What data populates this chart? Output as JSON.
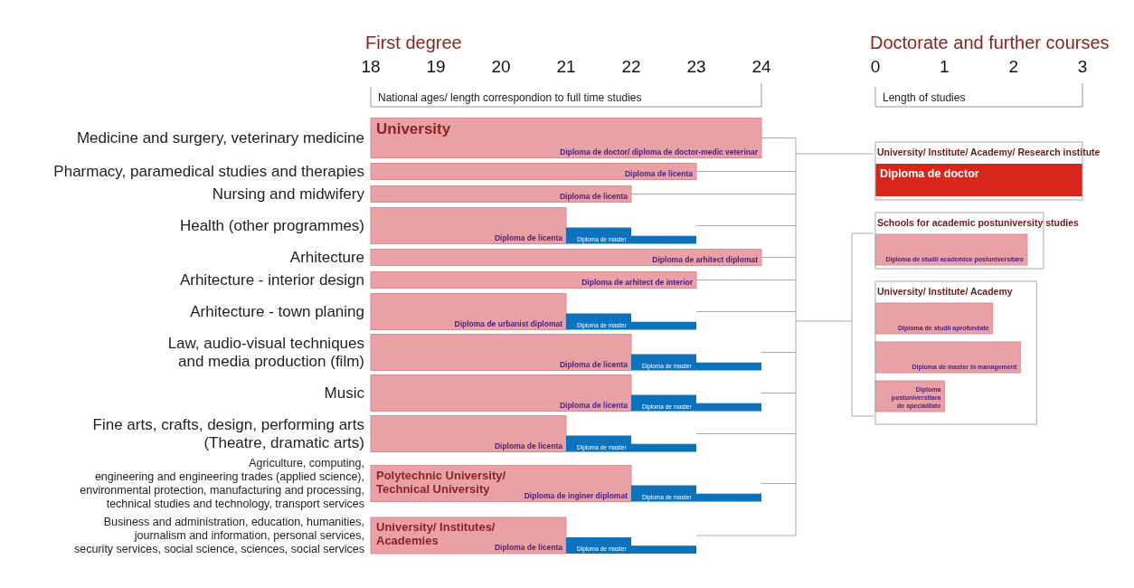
{
  "chart_data": [
    {
      "type": "bar",
      "orientation": "horizontal",
      "title": "First degree",
      "xlim": [
        18,
        24
      ],
      "xticks": [
        18,
        19,
        20,
        21,
        22,
        23,
        24
      ],
      "categories": [
        "Medicine and surgery, veterinary medicine",
        "Pharmacy, paramedical studies and therapies",
        "Nursing and midwifery",
        "Health (other programmes)",
        "Arhitecture",
        "Arhitecture - interior design",
        "Arhitecture - town planing",
        "Law, audio-visual techniques\nand media production (film)",
        "Music",
        "Fine arts, crafts, design, performing arts\n(Theatre, dramatic arts)",
        "Agriculture, computing,\nengineering and engineering trades (applied science),\nenvironmental protection, manufacturing and processing,\ntechnical studies and technology, transport services",
        "Business and administration, education, humanities,\njournalism and information, personal services,\nsecurity services, social science, sciences, social services"
      ],
      "series": [
        {
          "color": "#e9a1a6",
          "base": [
            18,
            18,
            18,
            18,
            18,
            18,
            18,
            18,
            18,
            18,
            18,
            18
          ],
          "values": [
            6,
            5,
            4,
            3,
            6,
            5,
            3,
            4,
            4,
            3,
            4,
            3
          ],
          "value_labels": [
            "Diploma de doctor/ diploma de doctor-medic veterinar",
            "Diploma de licenta",
            "Diploma de licenta",
            "Diploma de licenta",
            "Diploma de arhitect diplomat",
            "Diploma de arhitect de interior",
            "Diploma de urbanist diplomat",
            "Diploma de licenta",
            "Diploma de licenta",
            "Diploma de licenta",
            "Diploma de inginer diplomat",
            "Diploma de licenta"
          ]
        },
        {
          "color": "#0b72bb",
          "base": [
            null,
            null,
            null,
            21,
            null,
            null,
            21,
            22,
            22,
            21,
            22,
            21
          ],
          "values": [
            null,
            null,
            null,
            1,
            null,
            null,
            1,
            1,
            1,
            1,
            1,
            1
          ],
          "value_labels": [
            null,
            null,
            null,
            "Diploma de master",
            null,
            null,
            "Diploma de master",
            "Diploma de master",
            "Diploma de master",
            "Diploma de master",
            "Diploma de master",
            "Diploma de master"
          ]
        },
        {
          "color": "#0b72bb",
          "base": [
            null,
            null,
            null,
            22,
            null,
            null,
            22,
            23,
            23,
            22,
            23,
            22
          ],
          "values": [
            null,
            null,
            null,
            1,
            null,
            null,
            1,
            1,
            1,
            1,
            1,
            1
          ]
        }
      ],
      "annotations": [
        "National ages/ length correspondion to full time studies",
        "University",
        "Polytechnic University/\nTechnical University",
        "University/ Institutes/\nAcademies"
      ]
    },
    {
      "type": "bar",
      "orientation": "horizontal",
      "title": "Doctorate and further courses",
      "xlim": [
        0,
        3
      ],
      "xticks": [
        0,
        1,
        2,
        3
      ],
      "categories": [
        "University/ Institute/ Academy/ Research institute",
        "Schools for academic postuniversity studies",
        "University/ Institute/ Academy",
        null,
        null
      ],
      "values": [
        3,
        2.2,
        1.7,
        2.1,
        1
      ],
      "colors": [
        "#d9261c",
        "#e9a1a6",
        "#e9a1a6",
        "#e9a1a6",
        "#e9a1a6"
      ],
      "value_labels": [
        "Diploma de doctor",
        "Diploma de studii academice postuniversitare",
        "Diploma de studii aprofundate",
        "Diploma de master in management",
        "Diploma\npostuniversitara\nde specialitate"
      ],
      "annotations": [
        "Length of studies"
      ]
    }
  ]
}
